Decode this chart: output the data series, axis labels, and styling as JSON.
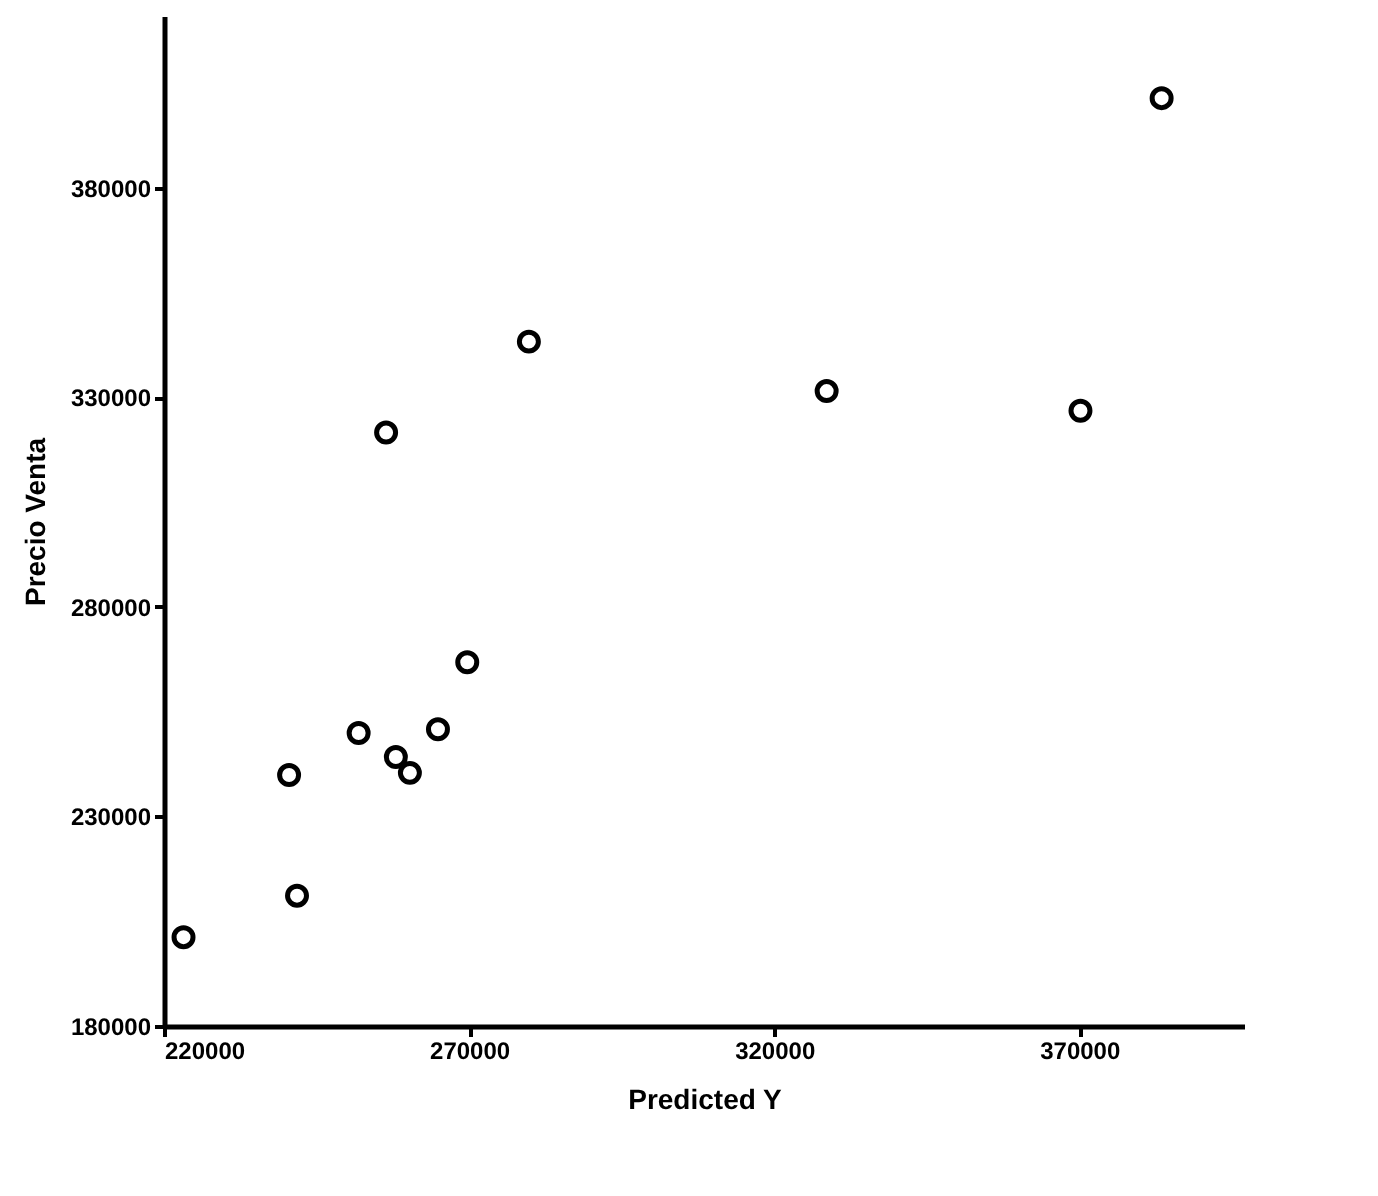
{
  "chart_data": {
    "type": "scatter",
    "xlabel": "Predicted Y",
    "ylabel": "Precio Venta",
    "x": [
      223200,
      241800,
      240500,
      251900,
      258000,
      260300,
      264900,
      269700,
      256400,
      279800,
      328600,
      370200,
      383500
    ],
    "series": [
      {
        "color": "#000000",
        "values": [
          201200,
          211100,
          239900,
          249900,
          244200,
          240400,
          250800,
          266800,
          321600,
          343300,
          331500,
          326800,
          401400
        ]
      }
    ],
    "xlim": [
      220000,
      397000
    ],
    "xticks": [
      220000,
      270000,
      320000,
      370000
    ],
    "ylim": [
      180000,
      421000
    ],
    "yticks": [
      180000,
      230000,
      280000,
      330000,
      380000
    ],
    "grid": false,
    "marker": "circle"
  }
}
